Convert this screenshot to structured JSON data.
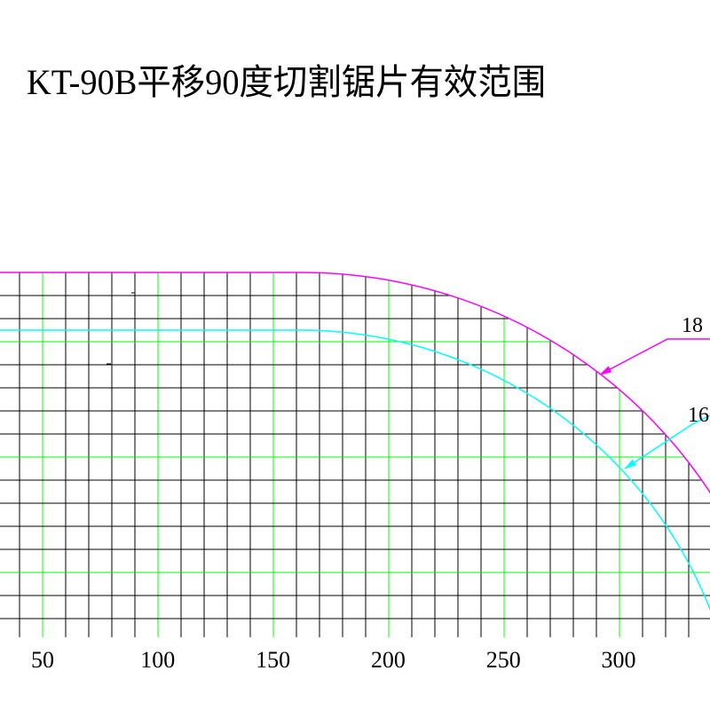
{
  "title": "KT-90B平移90度切割锯片有效范围",
  "x_labels": [
    "50",
    "100",
    "150",
    "200",
    "250",
    "300"
  ],
  "curve_labels": [
    "18",
    "16"
  ]
}
